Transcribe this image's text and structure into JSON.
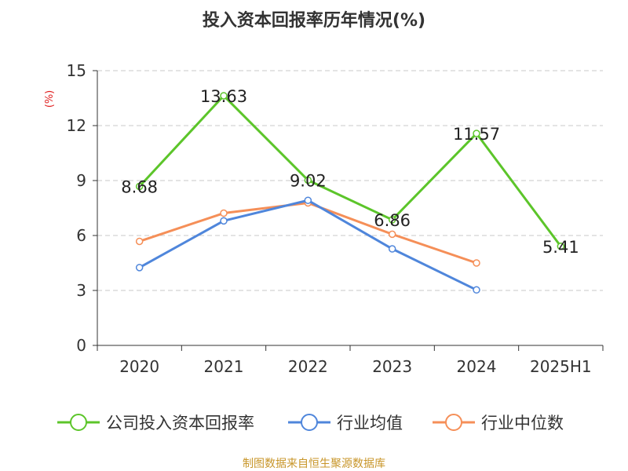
{
  "chart_data": {
    "type": "line",
    "title": "投入资本回报率历年情况(%)",
    "ylabel": "(%)",
    "xlabel": "",
    "categories": [
      "2020",
      "2021",
      "2022",
      "2023",
      "2024",
      "2025H1"
    ],
    "ylim": [
      0,
      15
    ],
    "yticks": [
      0,
      3,
      6,
      9,
      12,
      15
    ],
    "grid": true,
    "legend_position": "bottom",
    "series": [
      {
        "name": "公司投入资本回报率",
        "color": "#5cc52a",
        "values": [
          8.68,
          13.63,
          9.02,
          6.86,
          11.57,
          5.41
        ],
        "labels": [
          "8.68",
          "13.63",
          "9.02",
          "6.86",
          "11.57",
          "5.41"
        ]
      },
      {
        "name": "行业均值",
        "color": "#4f86db",
        "values": [
          4.25,
          6.8,
          7.92,
          5.27,
          3.03,
          null
        ]
      },
      {
        "name": "行业中位数",
        "color": "#f58f58",
        "values": [
          5.68,
          7.22,
          7.78,
          6.07,
          4.5,
          null
        ]
      }
    ],
    "source": "制图数据来自恒生聚源数据库"
  }
}
